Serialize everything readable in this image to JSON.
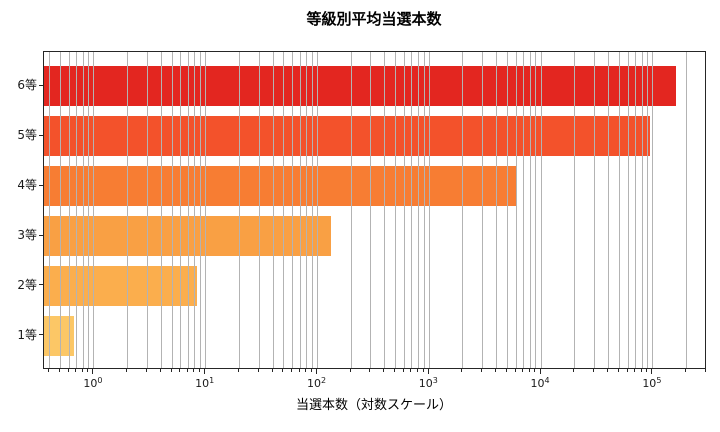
{
  "chart_data": {
    "type": "bar",
    "orientation": "horizontal",
    "title": "等級別平均当選本数",
    "xlabel": "当選本数（対数スケール）",
    "ylabel": "",
    "xscale": "log",
    "xlim": [
      0.3575,
      305000
    ],
    "categories": [
      "6等",
      "5等",
      "4等",
      "3等",
      "2等",
      "1等"
    ],
    "values": [
      160000,
      94000,
      6000,
      133,
      8.3,
      0.66
    ],
    "bar_colors": [
      "#e32620",
      "#f3522b",
      "#f77d33",
      "#f9a044",
      "#fbae4d",
      "#fcc766"
    ],
    "x_ticks": {
      "base": "10",
      "exponents": [
        0,
        1,
        2,
        3,
        4,
        5
      ]
    },
    "grid": {
      "axis": "x",
      "which": "both",
      "color": "#b3b3b3",
      "on": true
    },
    "legend": null,
    "frame": "box",
    "axis_color": "#262626"
  }
}
